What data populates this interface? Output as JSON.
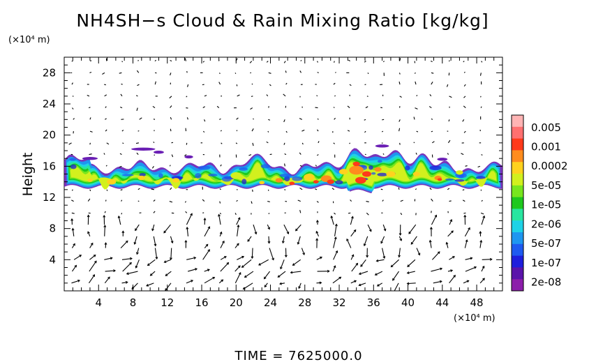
{
  "chart_data": {
    "type": "heatmap",
    "title": "NH4SH−s Cloud & Rain Mixing Ratio [kg/kg]",
    "xlabel": "(×10⁴ m)",
    "ylabel": "Height",
    "y_unit_label": "(×10⁴ m)",
    "footer": "TIME = 7625000.0",
    "xlim": [
      0,
      51
    ],
    "ylim": [
      0,
      30
    ],
    "xticks": [
      4,
      8,
      12,
      16,
      20,
      24,
      28,
      32,
      36,
      40,
      44,
      48
    ],
    "yticks": [
      4,
      8,
      12,
      16,
      20,
      24,
      28
    ],
    "colorbar": {
      "labels": [
        "0.005",
        "0.001",
        "0.0002",
        "5e-05",
        "1e-05",
        "2e-06",
        "5e-07",
        "1e-07",
        "2e-08"
      ],
      "colors": [
        "#ffb4b4",
        "#ff7070",
        "#ff3a1a",
        "#ff8c1e",
        "#ffd21e",
        "#d2f01e",
        "#78e61e",
        "#1ec81e",
        "#28e6a0",
        "#1ed2e6",
        "#1e96f0",
        "#1e5af0",
        "#1e1edc",
        "#5a14aa",
        "#8c1eaa"
      ]
    },
    "cloud_layer": {
      "base_height": 13.5,
      "top_height_range": [
        15,
        19
      ],
      "peak_mixing_ratio_location_x": [
        33,
        36
      ],
      "description_levels": [
        "2e-08",
        "5e-05",
        "0.001"
      ]
    },
    "wind_vectors": "present"
  }
}
